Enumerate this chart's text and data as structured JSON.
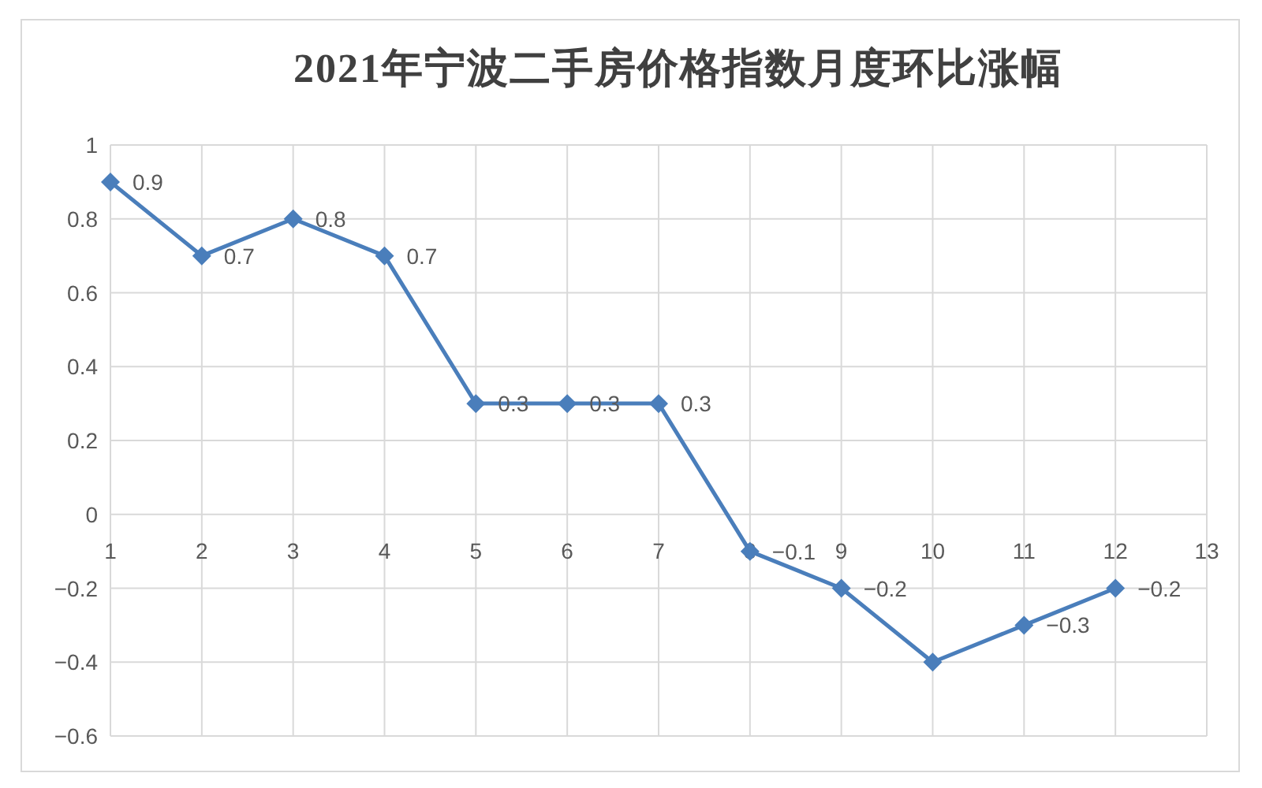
{
  "chart_data": {
    "type": "line",
    "title": "2021年宁波二手房价格指数月度环比涨幅",
    "x": [
      1,
      2,
      3,
      4,
      5,
      6,
      7,
      8,
      9,
      10,
      11,
      12
    ],
    "series": [
      {
        "color": "#4a7ebb",
        "values": [
          0.9,
          0.7,
          0.8,
          0.7,
          0.3,
          0.3,
          0.3,
          -0.1,
          -0.2,
          -0.4,
          -0.3,
          -0.2
        ],
        "value_labels": [
          "0.9",
          "0.7",
          "0.8",
          "0.7",
          "0.3",
          "0.3",
          "0.3",
          "−0.1",
          "−0.2",
          null,
          "−0.3",
          "−0.2"
        ]
      }
    ],
    "xlim": [
      1,
      13
    ],
    "xticks": [
      1,
      2,
      3,
      4,
      5,
      6,
      7,
      8,
      9,
      10,
      11,
      12,
      13
    ],
    "ylim": [
      -0.6,
      1
    ],
    "yticks": [
      -0.6,
      -0.4,
      -0.2,
      0,
      0.2,
      0.4,
      0.6,
      0.8,
      1
    ],
    "grid": true,
    "marker": "diamond",
    "line_style": "solid"
  }
}
